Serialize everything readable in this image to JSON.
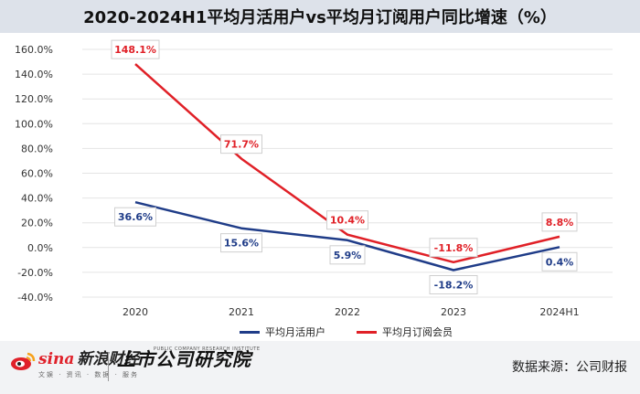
{
  "title": "2020-2024H1平均月活用户vs平均月订阅用户同比增速（%）",
  "chart_data": {
    "type": "line",
    "title": "2020-2024H1平均月活用户vs平均月订阅用户同比增速（%）",
    "categories": [
      "2020",
      "2021",
      "2022",
      "2023",
      "2024H1"
    ],
    "y_ticks": [
      "160.0%",
      "140.0%",
      "120.0%",
      "100.0%",
      "80.0%",
      "60.0%",
      "40.0%",
      "20.0%",
      "0.0%",
      "-20.0%",
      "-40.0%"
    ],
    "ylim": [
      -40,
      160
    ],
    "grid": true,
    "legend_position": "bottom",
    "series": [
      {
        "name": "平均月活用户",
        "color": "#1f3c88",
        "values": [
          36.6,
          15.6,
          5.9,
          -18.2,
          0.4
        ],
        "labels": [
          "36.6%",
          "15.6%",
          "5.9%",
          "-18.2%",
          "0.4%"
        ]
      },
      {
        "name": "平均月订阅会员",
        "color": "#e02027",
        "values": [
          148.1,
          71.7,
          10.4,
          -11.8,
          8.8
        ],
        "labels": [
          "148.1%",
          "71.7%",
          "10.4%",
          "-11.8%",
          "8.8%"
        ]
      }
    ]
  },
  "footer": {
    "logo_word": "sina",
    "logo_name": "新浪财经",
    "logo_tagline": "文娱 · 资讯 · 数据 · 服务",
    "institute_name": "上市公司研究院",
    "institute_english": "PUBLIC COMPANY RESEARCH INSTITUTE",
    "source": "数据来源：公司财报"
  }
}
